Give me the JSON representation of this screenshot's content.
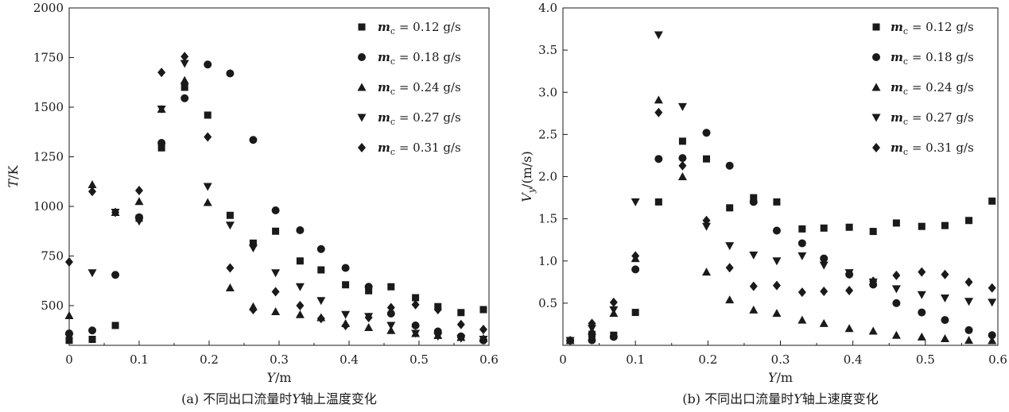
{
  "chart_data": [
    {
      "type": "scatter",
      "caption": "(a) 不同出口流量时Y轴上温度变化",
      "xlabel": "Y/m",
      "ylabel": "T/K",
      "xlim": [
        0,
        0.6
      ],
      "ylim": [
        300,
        2000
      ],
      "xticks": [
        "0",
        "0.1",
        "0.2",
        "0.3",
        "0.4",
        "0.5",
        "0.6"
      ],
      "yticks": [
        "500",
        "750",
        "1000",
        "1250",
        "1500",
        "1750",
        "2000"
      ],
      "legend_position": "top-right",
      "series": [
        {
          "name": "m_c = 0.12 g/s",
          "marker": "square",
          "points": [
            [
              0,
              325
            ],
            [
              0.033,
              330
            ],
            [
              0.066,
              400
            ],
            [
              0.1,
              940
            ],
            [
              0.132,
              1295
            ],
            [
              0.165,
              1600
            ],
            [
              0.198,
              1460
            ],
            [
              0.23,
              955
            ],
            [
              0.263,
              815
            ],
            [
              0.295,
              875
            ],
            [
              0.33,
              725
            ],
            [
              0.36,
              680
            ],
            [
              0.395,
              605
            ],
            [
              0.428,
              575
            ],
            [
              0.46,
              595
            ],
            [
              0.495,
              540
            ],
            [
              0.527,
              495
            ],
            [
              0.56,
              465
            ],
            [
              0.592,
              480
            ]
          ]
        },
        {
          "name": "m_c = 0.18 g/s",
          "marker": "circle",
          "points": [
            [
              0,
              360
            ],
            [
              0.033,
              375
            ],
            [
              0.066,
              655
            ],
            [
              0.1,
              945
            ],
            [
              0.132,
              1320
            ],
            [
              0.165,
              1545
            ],
            [
              0.198,
              1715
            ],
            [
              0.23,
              1670
            ],
            [
              0.263,
              1335
            ],
            [
              0.295,
              980
            ],
            [
              0.33,
              880
            ],
            [
              0.36,
              785
            ],
            [
              0.395,
              690
            ],
            [
              0.428,
              595
            ],
            [
              0.46,
              460
            ],
            [
              0.495,
              400
            ],
            [
              0.527,
              370
            ],
            [
              0.56,
              345
            ],
            [
              0.592,
              325
            ]
          ]
        },
        {
          "name": "m_c = 0.24 g/s",
          "marker": "triangle-up",
          "points": [
            [
              0,
              450
            ],
            [
              0.033,
              1110
            ],
            [
              0.066,
              970
            ],
            [
              0.1,
              1025
            ],
            [
              0.132,
              1490
            ],
            [
              0.165,
              1635
            ],
            [
              0.198,
              1020
            ],
            [
              0.23,
              590
            ],
            [
              0.263,
              495
            ],
            [
              0.295,
              470
            ],
            [
              0.33,
              455
            ],
            [
              0.36,
              440
            ],
            [
              0.395,
              410
            ],
            [
              0.428,
              390
            ],
            [
              0.46,
              375
            ],
            [
              0.495,
              360
            ],
            [
              0.527,
              350
            ],
            [
              0.56,
              340
            ],
            [
              0.592,
              335
            ]
          ]
        },
        {
          "name": "m_c = 0.27 g/s",
          "marker": "triangle-down",
          "points": [
            [
              0,
              340
            ],
            [
              0.033,
              665
            ],
            [
              0.066,
              970
            ],
            [
              0.1,
              925
            ],
            [
              0.132,
              1490
            ],
            [
              0.165,
              1720
            ],
            [
              0.198,
              1100
            ],
            [
              0.23,
              905
            ],
            [
              0.263,
              790
            ],
            [
              0.295,
              665
            ],
            [
              0.33,
              595
            ],
            [
              0.36,
              525
            ],
            [
              0.395,
              455
            ],
            [
              0.428,
              445
            ],
            [
              0.46,
              400
            ],
            [
              0.495,
              360
            ],
            [
              0.527,
              345
            ],
            [
              0.56,
              335
            ],
            [
              0.592,
              330
            ]
          ]
        },
        {
          "name": "m_c = 0.31 g/s",
          "marker": "diamond",
          "points": [
            [
              0,
              720
            ],
            [
              0.033,
              1075
            ],
            [
              0.066,
              970
            ],
            [
              0.1,
              1080
            ],
            [
              0.132,
              1675
            ],
            [
              0.165,
              1755
            ],
            [
              0.198,
              1350
            ],
            [
              0.23,
              690
            ],
            [
              0.263,
              480
            ],
            [
              0.295,
              570
            ],
            [
              0.33,
              500
            ],
            [
              0.36,
              435
            ],
            [
              0.395,
              400
            ],
            [
              0.428,
              440
            ],
            [
              0.46,
              490
            ],
            [
              0.495,
              505
            ],
            [
              0.527,
              480
            ],
            [
              0.56,
              405
            ],
            [
              0.592,
              380
            ]
          ]
        }
      ]
    },
    {
      "type": "scatter",
      "caption": "(b) 不同出口流量时Y轴上速度变化",
      "xlabel": "Y/m",
      "ylabel": "Vy/(m/s)",
      "xlim": [
        0,
        0.6
      ],
      "ylim": [
        0,
        4.0
      ],
      "xticks": [
        "0",
        "0.1",
        "0.2",
        "0.3",
        "0.4",
        "0.5",
        "0.6"
      ],
      "yticks": [
        "0.5",
        "1.0",
        "1.5",
        "2.0",
        "2.5",
        "3.0",
        "3.5",
        "4.0"
      ],
      "legend_position": "top-right",
      "series": [
        {
          "name": "m_c = 0.12 g/s",
          "marker": "square",
          "points": [
            [
              0.01,
              0
            ],
            [
              0.04,
              0.13
            ],
            [
              0.07,
              0.12
            ],
            [
              0.1,
              0.39
            ],
            [
              0.132,
              1.7
            ],
            [
              0.165,
              2.42
            ],
            [
              0.198,
              2.21
            ],
            [
              0.23,
              1.63
            ],
            [
              0.263,
              1.75
            ],
            [
              0.295,
              1.7
            ],
            [
              0.33,
              1.38
            ],
            [
              0.36,
              1.39
            ],
            [
              0.395,
              1.4
            ],
            [
              0.428,
              1.35
            ],
            [
              0.46,
              1.45
            ],
            [
              0.495,
              1.41
            ],
            [
              0.527,
              1.42
            ],
            [
              0.56,
              1.48
            ],
            [
              0.592,
              1.71
            ]
          ]
        },
        {
          "name": "m_c = 0.18 g/s",
          "marker": "circle",
          "points": [
            [
              0.01,
              0
            ],
            [
              0.04,
              0.06
            ],
            [
              0.07,
              0.1
            ],
            [
              0.1,
              0.9
            ],
            [
              0.132,
              2.21
            ],
            [
              0.165,
              2.22
            ],
            [
              0.198,
              2.52
            ],
            [
              0.23,
              2.13
            ],
            [
              0.263,
              1.7
            ],
            [
              0.295,
              1.36
            ],
            [
              0.33,
              1.21
            ],
            [
              0.36,
              1.03
            ],
            [
              0.395,
              0.84
            ],
            [
              0.428,
              0.72
            ],
            [
              0.46,
              0.5
            ],
            [
              0.495,
              0.39
            ],
            [
              0.527,
              0.3
            ],
            [
              0.56,
              0.18
            ],
            [
              0.592,
              0.12
            ]
          ]
        },
        {
          "name": "m_c = 0.24 g/s",
          "marker": "triangle-up",
          "points": [
            [
              0.01,
              0
            ],
            [
              0.04,
              0.17
            ],
            [
              0.07,
              0.38
            ],
            [
              0.1,
              1.03
            ],
            [
              0.132,
              2.91
            ],
            [
              0.165,
              2.0
            ],
            [
              0.198,
              0.87
            ],
            [
              0.23,
              0.54
            ],
            [
              0.263,
              0.42
            ],
            [
              0.295,
              0.38
            ],
            [
              0.33,
              0.3
            ],
            [
              0.36,
              0.26
            ],
            [
              0.395,
              0.2
            ],
            [
              0.428,
              0.17
            ],
            [
              0.46,
              0.12
            ],
            [
              0.495,
              0.1
            ],
            [
              0.527,
              0.08
            ],
            [
              0.56,
              0.06
            ],
            [
              0.592,
              0.05
            ]
          ]
        },
        {
          "name": "m_c = 0.27 g/s",
          "marker": "triangle-down",
          "points": [
            [
              0.01,
              0
            ],
            [
              0.04,
              0.2
            ],
            [
              0.07,
              0.42
            ],
            [
              0.1,
              1.7
            ],
            [
              0.132,
              3.68
            ],
            [
              0.165,
              2.83
            ],
            [
              0.198,
              1.41
            ],
            [
              0.23,
              1.18
            ],
            [
              0.263,
              1.07
            ],
            [
              0.295,
              1.0
            ],
            [
              0.33,
              1.06
            ],
            [
              0.36,
              0.95
            ],
            [
              0.395,
              0.86
            ],
            [
              0.428,
              0.75
            ],
            [
              0.46,
              0.67
            ],
            [
              0.495,
              0.6
            ],
            [
              0.527,
              0.56
            ],
            [
              0.56,
              0.52
            ],
            [
              0.592,
              0.51
            ]
          ]
        },
        {
          "name": "m_c = 0.31 g/s",
          "marker": "diamond",
          "points": [
            [
              0.01,
              0
            ],
            [
              0.04,
              0.26
            ],
            [
              0.07,
              0.51
            ],
            [
              0.1,
              1.06
            ],
            [
              0.132,
              2.76
            ],
            [
              0.165,
              2.13
            ],
            [
              0.198,
              1.48
            ],
            [
              0.23,
              0.92
            ],
            [
              0.263,
              0.7
            ],
            [
              0.295,
              0.71
            ],
            [
              0.33,
              0.63
            ],
            [
              0.36,
              0.64
            ],
            [
              0.395,
              0.65
            ],
            [
              0.428,
              0.76
            ],
            [
              0.46,
              0.83
            ],
            [
              0.495,
              0.87
            ],
            [
              0.527,
              0.84
            ],
            [
              0.56,
              0.75
            ],
            [
              0.592,
              0.68
            ]
          ]
        }
      ]
    }
  ]
}
